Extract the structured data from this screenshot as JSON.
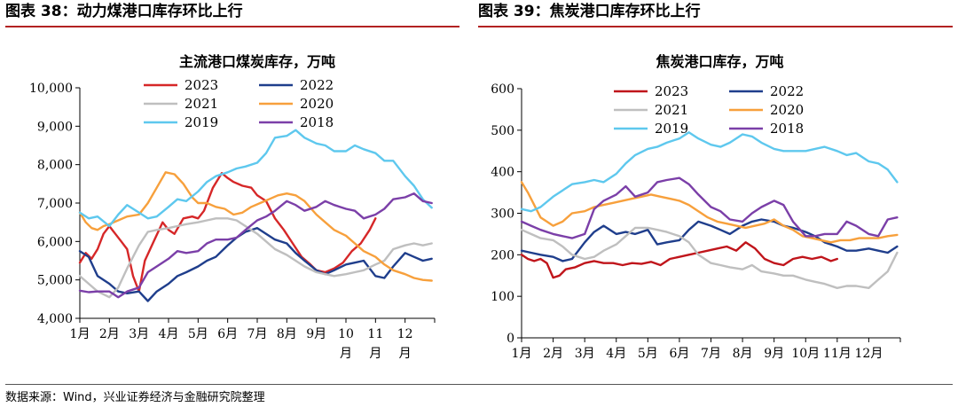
{
  "figures": [
    {
      "header": "图表 38：动力煤港口库存环比上行"
    },
    {
      "header": "图表 39：焦炭港口库存环比上行"
    }
  ],
  "source": "数据来源：Wind，兴业证券经济与金融研究院整理",
  "chart_data": [
    {
      "type": "line",
      "title": "主流港口煤炭库存，万吨",
      "ylim": [
        4000,
        10000
      ],
      "yticks": [
        4000,
        5000,
        6000,
        7000,
        8000,
        9000,
        10000
      ],
      "ytick_labels": [
        "4,000",
        "5,000",
        "6,000",
        "7,000",
        "8,000",
        "9,000",
        "10,000"
      ],
      "xlim": [
        1,
        13
      ],
      "xtick_labels": [
        "1月",
        "2月",
        "3月",
        "4月",
        "5月",
        "6月",
        "7月",
        "8月",
        "9月",
        "10\n月",
        "11\n月",
        "12\n月"
      ],
      "grid": false,
      "legend": "top-inside",
      "series": [
        {
          "name": "2023",
          "color": "#d62728",
          "x": [
            1,
            1.2,
            1.4,
            1.6,
            1.8,
            2,
            2.2,
            2.4,
            2.6,
            2.8,
            3,
            3.2,
            3.5,
            3.8,
            4,
            4.2,
            4.5,
            4.8,
            5,
            5.2,
            5.5,
            5.8,
            6,
            6.2,
            6.5,
            6.8,
            7,
            7.3,
            7.6,
            7.9,
            8.2,
            8.5,
            8.8,
            9,
            9.3,
            9.6,
            9.9,
            10.2,
            10.5,
            10.8,
            11
          ],
          "y": [
            5450,
            5700,
            5550,
            5800,
            6200,
            6400,
            6200,
            6000,
            5800,
            5100,
            4700,
            5500,
            6000,
            6500,
            6300,
            6200,
            6600,
            6650,
            6600,
            6800,
            7400,
            7780,
            7650,
            7550,
            7450,
            7400,
            7200,
            7050,
            6600,
            6300,
            5950,
            5600,
            5400,
            5250,
            5200,
            5300,
            5450,
            5750,
            5950,
            6300,
            6600
          ]
        },
        {
          "name": "2022",
          "color": "#1f3e8c",
          "x": [
            1,
            1.3,
            1.6,
            2,
            2.3,
            2.6,
            3,
            3.3,
            3.6,
            4,
            4.3,
            4.6,
            5,
            5.3,
            5.6,
            6,
            6.3,
            6.6,
            7,
            7.3,
            7.6,
            8,
            8.3,
            8.6,
            9,
            9.3,
            9.6,
            10,
            10.3,
            10.6,
            11,
            11.3,
            11.6,
            12,
            12.3,
            12.6,
            12.9
          ],
          "y": [
            5750,
            5600,
            5100,
            4900,
            4700,
            4650,
            4700,
            4450,
            4700,
            4900,
            5100,
            5200,
            5350,
            5500,
            5600,
            5900,
            6100,
            6250,
            6350,
            6200,
            6050,
            5950,
            5700,
            5500,
            5250,
            5150,
            5250,
            5400,
            5450,
            5500,
            5100,
            5050,
            5350,
            5700,
            5600,
            5500,
            5550
          ]
        },
        {
          "name": "2021",
          "color": "#bfbfbf",
          "x": [
            1,
            1.3,
            1.6,
            2,
            2.3,
            2.6,
            3,
            3.3,
            3.6,
            4,
            4.3,
            4.6,
            5,
            5.3,
            5.6,
            6,
            6.3,
            6.6,
            7,
            7.3,
            7.6,
            8,
            8.3,
            8.6,
            9,
            9.3,
            9.6,
            10,
            10.3,
            10.6,
            11,
            11.3,
            11.6,
            12,
            12.3,
            12.6,
            12.9
          ],
          "y": [
            5100,
            4900,
            4700,
            4550,
            4800,
            5300,
            5900,
            6250,
            6300,
            6350,
            6400,
            6450,
            6500,
            6550,
            6600,
            6600,
            6550,
            6400,
            6200,
            6000,
            5800,
            5650,
            5500,
            5350,
            5200,
            5150,
            5100,
            5150,
            5200,
            5250,
            5400,
            5500,
            5800,
            5900,
            5950,
            5900,
            5950
          ]
        },
        {
          "name": "2020",
          "color": "#f7a03c",
          "x": [
            1,
            1.2,
            1.4,
            1.6,
            1.8,
            2,
            2.3,
            2.6,
            3,
            3.3,
            3.6,
            3.9,
            4.2,
            4.5,
            4.8,
            5,
            5.3,
            5.6,
            5.9,
            6.2,
            6.5,
            6.8,
            7.1,
            7.4,
            7.7,
            8,
            8.3,
            8.6,
            9,
            9.3,
            9.6,
            10,
            10.3,
            10.6,
            11,
            11.3,
            11.6,
            12,
            12.3,
            12.6,
            12.9
          ],
          "y": [
            6750,
            6500,
            6350,
            6300,
            6400,
            6450,
            6550,
            6650,
            6700,
            7000,
            7400,
            7800,
            7750,
            7500,
            7150,
            7000,
            7000,
            6900,
            6850,
            6700,
            6750,
            6900,
            7000,
            7100,
            7200,
            7250,
            7200,
            7050,
            6700,
            6500,
            6300,
            6150,
            5950,
            5750,
            5600,
            5400,
            5250,
            5150,
            5050,
            5000,
            4980
          ]
        },
        {
          "name": "2019",
          "color": "#5ec8ee",
          "x": [
            1,
            1.3,
            1.6,
            2,
            2.3,
            2.6,
            3,
            3.3,
            3.6,
            4,
            4.3,
            4.6,
            5,
            5.3,
            5.6,
            6,
            6.3,
            6.6,
            7,
            7.3,
            7.6,
            8,
            8.3,
            8.6,
            9,
            9.3,
            9.6,
            10,
            10.3,
            10.6,
            11,
            11.3,
            11.6,
            12,
            12.3,
            12.6,
            12.9
          ],
          "y": [
            6750,
            6600,
            6650,
            6400,
            6700,
            6950,
            6750,
            6600,
            6650,
            6900,
            7100,
            7050,
            7300,
            7550,
            7700,
            7800,
            7900,
            7950,
            8050,
            8300,
            8700,
            8750,
            8900,
            8700,
            8550,
            8500,
            8350,
            8350,
            8500,
            8400,
            8300,
            8100,
            8100,
            7700,
            7450,
            7100,
            6880
          ]
        },
        {
          "name": "2018",
          "color": "#7b3fa8",
          "x": [
            1,
            1.3,
            1.6,
            2,
            2.3,
            2.6,
            3,
            3.3,
            3.6,
            4,
            4.3,
            4.6,
            5,
            5.3,
            5.6,
            6,
            6.3,
            6.6,
            7,
            7.3,
            7.6,
            8,
            8.3,
            8.6,
            9,
            9.3,
            9.6,
            10,
            10.3,
            10.6,
            11,
            11.3,
            11.6,
            12,
            12.3,
            12.6,
            12.9
          ],
          "y": [
            4720,
            4680,
            4700,
            4700,
            4550,
            4700,
            4800,
            5200,
            5350,
            5550,
            5750,
            5700,
            5750,
            5950,
            6050,
            6050,
            6100,
            6300,
            6550,
            6650,
            6800,
            7050,
            6950,
            6800,
            6900,
            7050,
            6950,
            6850,
            6800,
            6600,
            6700,
            6850,
            7100,
            7150,
            7250,
            7050,
            7000
          ]
        }
      ]
    },
    {
      "type": "line",
      "title": "焦炭港口库存，万吨",
      "ylim": [
        0,
        600
      ],
      "yticks": [
        0,
        100,
        200,
        300,
        400,
        500,
        600
      ],
      "ytick_labels": [
        "0",
        "100",
        "200",
        "300",
        "400",
        "500",
        "600"
      ],
      "xlim": [
        1,
        13
      ],
      "xtick_labels": [
        "1月",
        "2月",
        "3月",
        "4月",
        "5月",
        "6月",
        "7月",
        "8月",
        "9月",
        "10月",
        "11月",
        "12月"
      ],
      "grid": false,
      "legend": "top-inside",
      "series": [
        {
          "name": "2023",
          "color": "#c0151b",
          "x": [
            1,
            1.2,
            1.4,
            1.6,
            1.8,
            2,
            2.2,
            2.4,
            2.7,
            3,
            3.3,
            3.6,
            3.9,
            4.2,
            4.5,
            4.8,
            5.1,
            5.4,
            5.7,
            6,
            6.3,
            6.6,
            6.9,
            7.2,
            7.5,
            7.8,
            8.1,
            8.4,
            8.7,
            9,
            9.3,
            9.6,
            9.9,
            10.2,
            10.5,
            10.8,
            11
          ],
          "y": [
            200,
            190,
            185,
            190,
            180,
            145,
            150,
            165,
            170,
            180,
            185,
            180,
            180,
            175,
            180,
            178,
            183,
            175,
            190,
            195,
            200,
            205,
            210,
            215,
            220,
            210,
            230,
            215,
            190,
            180,
            175,
            190,
            195,
            190,
            195,
            185,
            190
          ]
        },
        {
          "name": "2022",
          "color": "#1f3e8c",
          "x": [
            1,
            1.3,
            1.6,
            2,
            2.3,
            2.6,
            3,
            3.3,
            3.6,
            4,
            4.3,
            4.6,
            5,
            5.3,
            5.6,
            6,
            6.3,
            6.6,
            7,
            7.3,
            7.6,
            8,
            8.3,
            8.6,
            9,
            9.3,
            9.6,
            10,
            10.3,
            10.6,
            11,
            11.3,
            11.6,
            12,
            12.3,
            12.6,
            12.9
          ],
          "y": [
            210,
            205,
            200,
            195,
            185,
            190,
            230,
            255,
            270,
            250,
            255,
            250,
            260,
            225,
            230,
            235,
            260,
            280,
            270,
            260,
            250,
            270,
            280,
            285,
            280,
            270,
            265,
            255,
            245,
            230,
            220,
            210,
            210,
            215,
            210,
            205,
            220
          ]
        },
        {
          "name": "2021",
          "color": "#bfbfbf",
          "x": [
            1,
            1.3,
            1.6,
            2,
            2.3,
            2.6,
            3,
            3.3,
            3.6,
            4,
            4.3,
            4.6,
            5,
            5.3,
            5.6,
            6,
            6.3,
            6.6,
            7,
            7.3,
            7.6,
            8,
            8.3,
            8.6,
            9,
            9.3,
            9.6,
            10,
            10.3,
            10.6,
            11,
            11.3,
            11.6,
            12,
            12.3,
            12.6,
            12.9
          ],
          "y": [
            260,
            250,
            240,
            235,
            220,
            200,
            190,
            195,
            210,
            225,
            245,
            265,
            265,
            260,
            255,
            245,
            230,
            200,
            180,
            175,
            170,
            165,
            175,
            160,
            155,
            150,
            150,
            140,
            135,
            130,
            120,
            125,
            125,
            120,
            140,
            160,
            205
          ]
        },
        {
          "name": "2020",
          "color": "#f7a03c",
          "x": [
            1,
            1.2,
            1.4,
            1.6,
            1.8,
            2,
            2.3,
            2.6,
            3,
            3.3,
            3.6,
            3.9,
            4.2,
            4.5,
            4.8,
            5.1,
            5.4,
            5.7,
            6,
            6.3,
            6.6,
            6.9,
            7.2,
            7.5,
            7.8,
            8.1,
            8.4,
            8.7,
            9,
            9.3,
            9.6,
            9.9,
            10.2,
            10.5,
            10.8,
            11.1,
            11.4,
            11.7,
            12,
            12.3,
            12.6,
            12.9
          ],
          "y": [
            375,
            350,
            320,
            290,
            280,
            270,
            280,
            300,
            305,
            315,
            320,
            325,
            330,
            335,
            340,
            345,
            340,
            335,
            330,
            320,
            305,
            290,
            280,
            275,
            270,
            265,
            270,
            275,
            285,
            270,
            260,
            245,
            240,
            235,
            230,
            235,
            235,
            240,
            240,
            240,
            245,
            248
          ]
        },
        {
          "name": "2019",
          "color": "#5ec8ee",
          "x": [
            1,
            1.3,
            1.6,
            2,
            2.3,
            2.6,
            3,
            3.3,
            3.6,
            4,
            4.3,
            4.6,
            5,
            5.3,
            5.6,
            6,
            6.3,
            6.6,
            7,
            7.3,
            7.6,
            8,
            8.3,
            8.6,
            9,
            9.3,
            9.6,
            10,
            10.3,
            10.6,
            11,
            11.3,
            11.6,
            12,
            12.3,
            12.6,
            12.9
          ],
          "y": [
            310,
            305,
            315,
            340,
            355,
            370,
            375,
            380,
            375,
            395,
            420,
            440,
            455,
            460,
            470,
            480,
            495,
            480,
            465,
            460,
            470,
            490,
            485,
            470,
            455,
            450,
            450,
            450,
            455,
            460,
            450,
            440,
            445,
            425,
            420,
            405,
            375
          ]
        },
        {
          "name": "2018",
          "color": "#7b3fa8",
          "x": [
            1,
            1.3,
            1.6,
            2,
            2.3,
            2.6,
            3,
            3.3,
            3.6,
            4,
            4.3,
            4.6,
            5,
            5.3,
            5.6,
            6,
            6.3,
            6.6,
            7,
            7.3,
            7.6,
            8,
            8.3,
            8.6,
            9,
            9.3,
            9.6,
            10,
            10.3,
            10.6,
            11,
            11.3,
            11.6,
            12,
            12.3,
            12.6,
            12.9
          ],
          "y": [
            280,
            270,
            260,
            250,
            245,
            240,
            250,
            310,
            330,
            345,
            365,
            340,
            350,
            375,
            380,
            385,
            370,
            345,
            315,
            305,
            285,
            280,
            300,
            315,
            330,
            320,
            280,
            245,
            245,
            250,
            250,
            280,
            270,
            250,
            245,
            285,
            290
          ]
        }
      ]
    }
  ]
}
